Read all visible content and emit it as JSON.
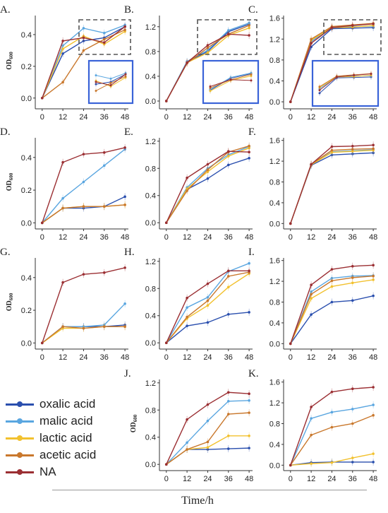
{
  "colors": {
    "oxalic acid": "#2a4fae",
    "malic acid": "#5aa6e0",
    "lactic acid": "#f2c12e",
    "acetic acid": "#c9782d",
    "NA": "#9b2f33"
  },
  "legend": {
    "items": [
      {
        "label": "oxalic acid",
        "color": "#2a4fae"
      },
      {
        "label": "malic acid",
        "color": "#5aa6e0"
      },
      {
        "label": "lactic acid",
        "color": "#f2c12e"
      },
      {
        "label": "acetic acid",
        "color": "#c9782d"
      },
      {
        "label": "NA",
        "color": "#9b2f33"
      }
    ]
  },
  "x_axis_title": "Time/h",
  "y_axis_label_main": "OD",
  "y_axis_label_sub": "600",
  "chart_data": [
    {
      "panel": "A.",
      "type": "line",
      "x": [
        0,
        12,
        24,
        36,
        48
      ],
      "xticks": [
        "0",
        "12",
        "24",
        "36",
        "48"
      ],
      "ylim": [
        -0.05,
        0.52
      ],
      "yticks": [
        "0.0",
        "0.2",
        "0.4"
      ],
      "ytick_values": [
        0,
        0.2,
        0.4
      ],
      "ylabel": true,
      "inset": true,
      "series": [
        {
          "name": "oxalic acid",
          "values": [
            0,
            0.28,
            0.36,
            0.38,
            0.45
          ]
        },
        {
          "name": "malic acid",
          "values": [
            0,
            0.33,
            0.44,
            0.41,
            0.46
          ]
        },
        {
          "name": "lactic acid",
          "values": [
            0,
            0.31,
            0.39,
            0.34,
            0.42
          ]
        },
        {
          "name": "acetic acid",
          "values": [
            0,
            0.1,
            0.3,
            0.37,
            0.43
          ]
        },
        {
          "name": "NA",
          "values": [
            0,
            0.36,
            0.38,
            0.35,
            0.45
          ]
        }
      ]
    },
    {
      "panel": "B.",
      "type": "line",
      "x": [
        0,
        12,
        24,
        36,
        48
      ],
      "xticks": [
        "0",
        "12",
        "24",
        "36",
        "48"
      ],
      "ylim": [
        -0.08,
        1.38
      ],
      "yticks": [
        "0.0",
        "0.4",
        "0.8",
        "1.2"
      ],
      "ytick_values": [
        0,
        0.4,
        0.8,
        1.2
      ],
      "ylabel": false,
      "inset": true,
      "series": [
        {
          "name": "oxalic acid",
          "values": [
            0,
            0.63,
            0.8,
            1.12,
            1.24
          ]
        },
        {
          "name": "malic acid",
          "values": [
            0,
            0.64,
            0.82,
            1.14,
            1.26
          ]
        },
        {
          "name": "lactic acid",
          "values": [
            0,
            0.62,
            0.78,
            1.06,
            1.18
          ]
        },
        {
          "name": "acetic acid",
          "values": [
            0,
            0.61,
            0.86,
            1.08,
            1.22
          ]
        },
        {
          "name": "NA",
          "values": [
            0,
            0.62,
            0.9,
            1.08,
            1.06
          ]
        }
      ]
    },
    {
      "panel": "C.",
      "type": "line",
      "x": [
        0,
        12,
        24,
        36,
        48
      ],
      "xticks": [
        "0",
        "12",
        "24",
        "36",
        "48"
      ],
      "ylim": [
        -0.08,
        1.65
      ],
      "yticks": [
        "0.0",
        "0.4",
        "0.8",
        "1.2",
        "1.6"
      ],
      "ytick_values": [
        0,
        0.4,
        0.8,
        1.2,
        1.6
      ],
      "ylabel": false,
      "inset": true,
      "series": [
        {
          "name": "oxalic acid",
          "values": [
            0,
            1.05,
            1.4,
            1.41,
            1.42
          ]
        },
        {
          "name": "malic acid",
          "values": [
            0,
            1.15,
            1.43,
            1.44,
            1.45
          ]
        },
        {
          "name": "lactic acid",
          "values": [
            0,
            1.18,
            1.42,
            1.43,
            1.46
          ]
        },
        {
          "name": "acetic acid",
          "values": [
            0,
            1.2,
            1.44,
            1.47,
            1.5
          ]
        },
        {
          "name": "NA",
          "values": [
            0,
            1.12,
            1.42,
            1.46,
            1.49
          ]
        }
      ]
    },
    {
      "panel": "D.",
      "type": "line",
      "x": [
        0,
        12,
        24,
        36,
        48
      ],
      "xticks": [
        "0",
        "12",
        "24",
        "36",
        "48"
      ],
      "ylim": [
        -0.02,
        0.52
      ],
      "yticks": [
        "0.0",
        "0.2",
        "0.4"
      ],
      "ytick_values": [
        0,
        0.2,
        0.4
      ],
      "ylabel": true,
      "inset": false,
      "series": [
        {
          "name": "oxalic acid",
          "values": [
            0,
            0.09,
            0.09,
            0.1,
            0.16
          ]
        },
        {
          "name": "malic acid",
          "values": [
            0,
            0.15,
            0.25,
            0.35,
            0.45
          ]
        },
        {
          "name": "lactic acid",
          "values": [
            0,
            0.09,
            0.1,
            0.1,
            0.11
          ]
        },
        {
          "name": "acetic acid",
          "values": [
            0,
            0.09,
            0.1,
            0.1,
            0.11
          ]
        },
        {
          "name": "NA",
          "values": [
            0,
            0.37,
            0.42,
            0.43,
            0.46
          ]
        }
      ]
    },
    {
      "panel": "E.",
      "type": "line",
      "x": [
        0,
        12,
        24,
        36,
        48
      ],
      "xticks": [
        "0",
        "12",
        "24",
        "36",
        "48"
      ],
      "ylim": [
        -0.05,
        1.25
      ],
      "yticks": [
        "0.0",
        "0.4",
        "0.8",
        "1.2"
      ],
      "ytick_values": [
        0,
        0.4,
        0.8,
        1.2
      ],
      "ylabel": false,
      "inset": false,
      "series": [
        {
          "name": "oxalic acid",
          "values": [
            0,
            0.49,
            0.65,
            0.85,
            0.95
          ]
        },
        {
          "name": "malic acid",
          "values": [
            0,
            0.52,
            0.8,
            1.0,
            1.12
          ]
        },
        {
          "name": "lactic acid",
          "values": [
            0,
            0.5,
            0.75,
            0.98,
            1.1
          ]
        },
        {
          "name": "acetic acid",
          "values": [
            0,
            0.47,
            0.78,
            1.04,
            1.13
          ]
        },
        {
          "name": "NA",
          "values": [
            0,
            0.66,
            0.86,
            1.05,
            1.04
          ]
        }
      ]
    },
    {
      "panel": "F.",
      "type": "line",
      "x": [
        0,
        12,
        24,
        36,
        48
      ],
      "xticks": [
        "0",
        "12",
        "24",
        "36",
        "48"
      ],
      "ylim": [
        -0.05,
        1.65
      ],
      "yticks": [
        "0.0",
        "0.4",
        "0.8",
        "1.2",
        "1.6"
      ],
      "ytick_values": [
        0,
        0.4,
        0.8,
        1.2,
        1.6
      ],
      "ylabel": false,
      "inset": false,
      "series": [
        {
          "name": "oxalic acid",
          "values": [
            0,
            1.12,
            1.32,
            1.34,
            1.36
          ]
        },
        {
          "name": "malic acid",
          "values": [
            0,
            1.13,
            1.38,
            1.4,
            1.42
          ]
        },
        {
          "name": "lactic acid",
          "values": [
            0,
            1.13,
            1.37,
            1.39,
            1.41
          ]
        },
        {
          "name": "acetic acid",
          "values": [
            0,
            1.14,
            1.41,
            1.43,
            1.44
          ]
        },
        {
          "name": "NA",
          "values": [
            0,
            1.14,
            1.48,
            1.49,
            1.51
          ]
        }
      ]
    },
    {
      "panel": "G.",
      "type": "line",
      "x": [
        0,
        12,
        24,
        36,
        48
      ],
      "xticks": [
        "0",
        "12",
        "24",
        "36",
        "48"
      ],
      "ylim": [
        -0.02,
        0.52
      ],
      "yticks": [
        "0.0",
        "0.2",
        "0.4"
      ],
      "ytick_values": [
        0,
        0.2,
        0.4
      ],
      "ylabel": true,
      "inset": false,
      "series": [
        {
          "name": "oxalic acid",
          "values": [
            0,
            0.1,
            0.1,
            0.1,
            0.11
          ]
        },
        {
          "name": "malic acid",
          "values": [
            0,
            0.1,
            0.1,
            0.11,
            0.24
          ]
        },
        {
          "name": "lactic acid",
          "values": [
            0,
            0.09,
            0.09,
            0.1,
            0.1
          ]
        },
        {
          "name": "acetic acid",
          "values": [
            0,
            0.1,
            0.09,
            0.1,
            0.1
          ]
        },
        {
          "name": "NA",
          "values": [
            0,
            0.37,
            0.42,
            0.43,
            0.46
          ]
        }
      ]
    },
    {
      "panel": "H.",
      "type": "line",
      "x": [
        0,
        12,
        24,
        36,
        48
      ],
      "xticks": [
        "0",
        "12",
        "24",
        "36",
        "48"
      ],
      "ylim": [
        -0.05,
        1.25
      ],
      "yticks": [
        "0.0",
        "0.4",
        "0.8",
        "1.2"
      ],
      "ytick_values": [
        0,
        0.4,
        0.8,
        1.2
      ],
      "ylabel": false,
      "inset": false,
      "series": [
        {
          "name": "oxalic acid",
          "values": [
            0,
            0.25,
            0.3,
            0.42,
            0.45
          ]
        },
        {
          "name": "malic acid",
          "values": [
            0,
            0.52,
            0.67,
            1.05,
            1.17
          ]
        },
        {
          "name": "lactic acid",
          "values": [
            0,
            0.36,
            0.55,
            0.82,
            1.02
          ]
        },
        {
          "name": "acetic acid",
          "values": [
            0,
            0.38,
            0.62,
            0.98,
            1.04
          ]
        },
        {
          "name": "NA",
          "values": [
            0,
            0.66,
            0.87,
            1.06,
            1.06
          ]
        }
      ]
    },
    {
      "panel": "I.",
      "type": "line",
      "x": [
        0,
        12,
        24,
        36,
        48
      ],
      "xticks": [
        "0",
        "12",
        "24",
        "36",
        "48"
      ],
      "ylim": [
        -0.05,
        1.65
      ],
      "yticks": [
        "0.0",
        "0.4",
        "0.8",
        "1.2",
        "1.6"
      ],
      "ytick_values": [
        0,
        0.4,
        0.8,
        1.2,
        1.6
      ],
      "ylabel": false,
      "inset": false,
      "series": [
        {
          "name": "oxalic acid",
          "values": [
            0,
            0.56,
            0.8,
            0.83,
            0.92
          ]
        },
        {
          "name": "malic acid",
          "values": [
            0,
            1.0,
            1.26,
            1.3,
            1.31
          ]
        },
        {
          "name": "lactic acid",
          "values": [
            0,
            0.87,
            1.1,
            1.17,
            1.23
          ]
        },
        {
          "name": "acetic acid",
          "values": [
            0,
            0.95,
            1.21,
            1.27,
            1.3
          ]
        },
        {
          "name": "NA",
          "values": [
            0,
            1.13,
            1.43,
            1.49,
            1.51
          ]
        }
      ]
    },
    {
      "panel": "J.",
      "type": "line",
      "x": [
        0,
        12,
        24,
        36,
        48
      ],
      "xticks": [
        "0",
        "12",
        "24",
        "36",
        "48"
      ],
      "ylim": [
        -0.05,
        1.25
      ],
      "yticks": [
        "0.0",
        "0.4",
        "0.8",
        "1.2"
      ],
      "ytick_values": [
        0,
        0.4,
        0.8,
        1.2
      ],
      "ylabel": true,
      "inset": false,
      "series": [
        {
          "name": "oxalic acid",
          "values": [
            0,
            0.22,
            0.22,
            0.23,
            0.24
          ]
        },
        {
          "name": "malic acid",
          "values": [
            0,
            0.32,
            0.64,
            0.93,
            0.94
          ]
        },
        {
          "name": "lactic acid",
          "values": [
            0,
            0.22,
            0.25,
            0.42,
            0.42
          ]
        },
        {
          "name": "acetic acid",
          "values": [
            0,
            0.22,
            0.33,
            0.74,
            0.76
          ]
        },
        {
          "name": "NA",
          "values": [
            0,
            0.66,
            0.88,
            1.06,
            1.04
          ]
        }
      ]
    },
    {
      "panel": "K.",
      "type": "line",
      "x": [
        0,
        12,
        24,
        36,
        48
      ],
      "xticks": [
        "0",
        "12",
        "24",
        "36",
        "48"
      ],
      "ylim": [
        -0.05,
        1.65
      ],
      "yticks": [
        "0.0",
        "0.4",
        "0.8",
        "1.2",
        "1.6"
      ],
      "ytick_values": [
        0,
        0.4,
        0.8,
        1.2,
        1.6
      ],
      "ylabel": false,
      "inset": false,
      "series": [
        {
          "name": "oxalic acid",
          "values": [
            0,
            0.05,
            0.06,
            0.06,
            0.06
          ]
        },
        {
          "name": "malic acid",
          "values": [
            0,
            0.9,
            1.02,
            1.08,
            1.16
          ]
        },
        {
          "name": "lactic acid",
          "values": [
            0,
            0.03,
            0.05,
            0.14,
            0.22
          ]
        },
        {
          "name": "acetic acid",
          "values": [
            0,
            0.58,
            0.73,
            0.8,
            0.96
          ]
        },
        {
          "name": "NA",
          "values": [
            0,
            1.12,
            1.41,
            1.47,
            1.5
          ]
        }
      ]
    }
  ]
}
